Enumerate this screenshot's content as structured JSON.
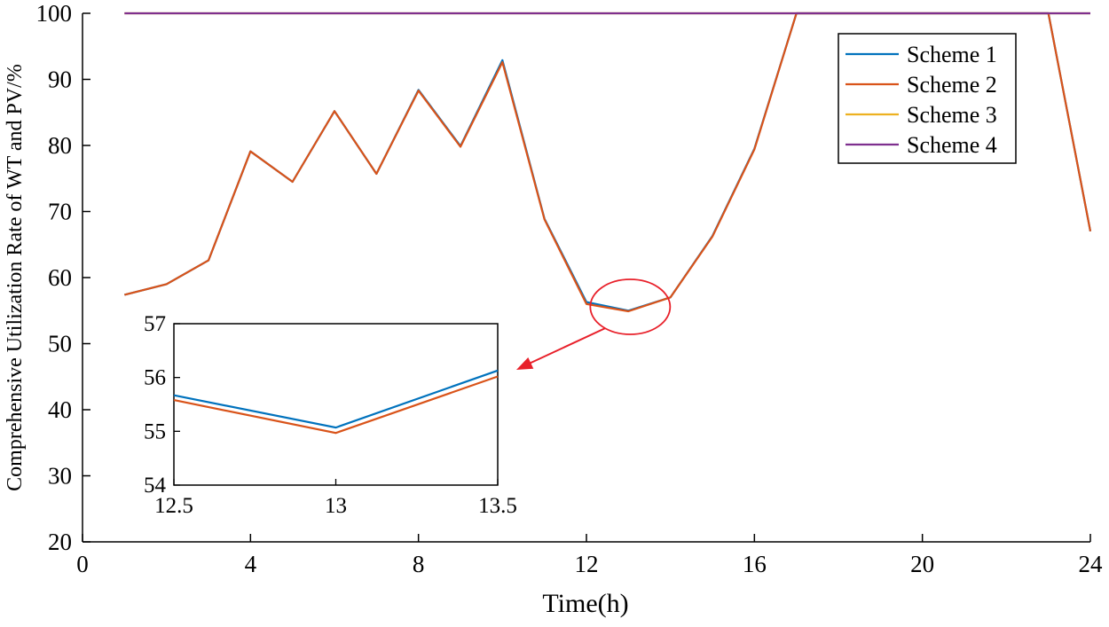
{
  "chart_data": {
    "type": "line",
    "title": "",
    "xlabel": "Time(h)",
    "ylabel": "Comprehensive Utilization Rate of WT and PV/%",
    "xlim": [
      0,
      24
    ],
    "ylim": [
      20,
      100
    ],
    "xticks": [
      0,
      4,
      8,
      12,
      16,
      20,
      24
    ],
    "yticks": [
      20,
      30,
      40,
      50,
      60,
      70,
      80,
      90,
      100
    ],
    "legend_position": "top-right",
    "colors": {
      "scheme1": "#0072BD",
      "scheme2": "#D95319",
      "scheme3": "#EDB120",
      "scheme4": "#7E2F8E",
      "annotation": "#E8202A"
    },
    "x": [
      1,
      2,
      3,
      4,
      5,
      6,
      7,
      8,
      9,
      10,
      11,
      12,
      13,
      14,
      15,
      16,
      17,
      18,
      19,
      20,
      21,
      22,
      23,
      24
    ],
    "series": [
      {
        "name": "Scheme 1",
        "color": "#0072BD",
        "values": [
          57.4,
          59.0,
          62.6,
          79.1,
          74.5,
          85.2,
          75.7,
          88.4,
          79.9,
          92.9,
          68.9,
          56.3,
          55.0,
          57.0,
          66.3,
          79.5,
          100,
          100,
          100,
          100,
          100,
          100,
          100,
          67.0
        ]
      },
      {
        "name": "Scheme 2",
        "color": "#D95319",
        "values": [
          57.4,
          59.0,
          62.6,
          79.1,
          74.5,
          85.2,
          75.7,
          88.3,
          79.8,
          92.6,
          68.8,
          56.0,
          54.9,
          57.0,
          66.2,
          79.4,
          100,
          100,
          100,
          100,
          100,
          100,
          100,
          67.0
        ]
      },
      {
        "name": "Scheme 3",
        "color": "#EDB120",
        "values": [
          100,
          100,
          100,
          100,
          100,
          100,
          100,
          100,
          100,
          100,
          100,
          100,
          100,
          100,
          100,
          100,
          100,
          100,
          100,
          100,
          100,
          100,
          100,
          100
        ]
      },
      {
        "name": "Scheme 4",
        "color": "#7E2F8E",
        "values": [
          100,
          100,
          100,
          100,
          100,
          100,
          100,
          100,
          100,
          100,
          100,
          100,
          100,
          100,
          100,
          100,
          100,
          100,
          100,
          100,
          100,
          100,
          100,
          100
        ]
      }
    ],
    "inset": {
      "xlim": [
        12.5,
        13.5
      ],
      "ylim": [
        54,
        57
      ],
      "xticks": [
        12.5,
        13,
        13.5
      ],
      "yticks": [
        54,
        55,
        56,
        57
      ],
      "series": [
        {
          "name": "Scheme 1",
          "color": "#0072BD",
          "x": [
            12.5,
            13,
            13.5
          ],
          "values": [
            55.67,
            55.07,
            56.13
          ]
        },
        {
          "name": "Scheme 2",
          "color": "#D95319",
          "x": [
            12.5,
            13,
            13.5
          ],
          "values": [
            55.58,
            54.97,
            56.02
          ]
        }
      ]
    }
  }
}
